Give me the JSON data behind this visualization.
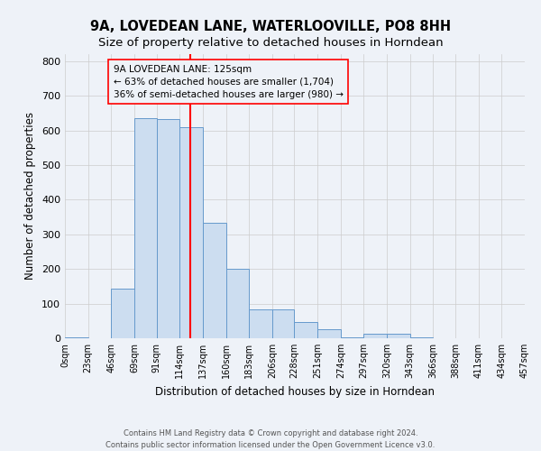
{
  "title": "9A, LOVEDEAN LANE, WATERLOOVILLE, PO8 8HH",
  "subtitle": "Size of property relative to detached houses in Horndean",
  "xlabel": "Distribution of detached houses by size in Horndean",
  "ylabel": "Number of detached properties",
  "bin_labels": [
    "0sqm",
    "23sqm",
    "46sqm",
    "69sqm",
    "91sqm",
    "114sqm",
    "137sqm",
    "160sqm",
    "183sqm",
    "206sqm",
    "228sqm",
    "251sqm",
    "274sqm",
    "297sqm",
    "320sqm",
    "343sqm",
    "366sqm",
    "388sqm",
    "411sqm",
    "434sqm",
    "457sqm"
  ],
  "bin_edges": [
    0,
    23,
    46,
    69,
    91,
    114,
    137,
    160,
    183,
    206,
    228,
    251,
    274,
    297,
    320,
    343,
    366,
    388,
    411,
    434,
    457
  ],
  "bar_heights": [
    2,
    0,
    143,
    635,
    632,
    610,
    333,
    201,
    84,
    84,
    46,
    27,
    2,
    12,
    12,
    2,
    0,
    0,
    0,
    0,
    2
  ],
  "bar_color": "#ccddf0",
  "bar_edgecolor": "#6699cc",
  "grid_color": "#cccccc",
  "vline_x": 125,
  "vline_color": "red",
  "annotation_title": "9A LOVEDEAN LANE: 125sqm",
  "annotation_line1": "← 63% of detached houses are smaller (1,704)",
  "annotation_line2": "36% of semi-detached houses are larger (980) →",
  "annotation_box_edgecolor": "red",
  "ylim": [
    0,
    820
  ],
  "yticks": [
    0,
    100,
    200,
    300,
    400,
    500,
    600,
    700,
    800
  ],
  "footer1": "Contains HM Land Registry data © Crown copyright and database right 2024.",
  "footer2": "Contains public sector information licensed under the Open Government Licence v3.0.",
  "background_color": "#eef2f8",
  "title_fontsize": 10.5,
  "subtitle_fontsize": 9.5
}
